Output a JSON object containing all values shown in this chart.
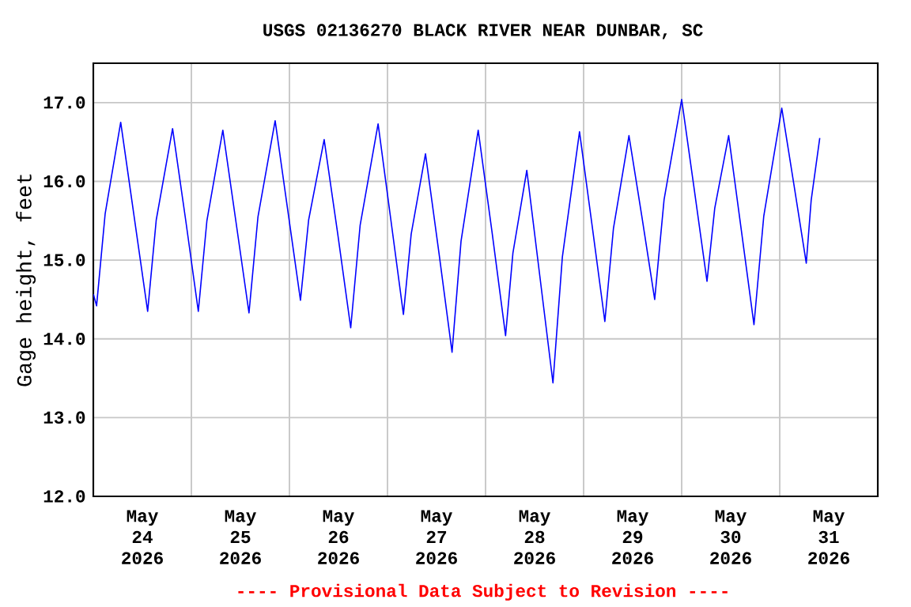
{
  "chart_data": {
    "type": "line",
    "title": "USGS 02136270 BLACK RIVER NEAR DUNBAR, SC",
    "ylabel": "Gage height, feet",
    "annotations": [
      "---- Provisional Data Subject to Revision ----"
    ],
    "xlim": [
      "2026-05-24T00:00",
      "2026-06-01T00:00"
    ],
    "xticks": [
      {
        "value": "2026-05-24T12:00",
        "label": "May 24 2026"
      },
      {
        "value": "2026-05-25T12:00",
        "label": "May 25 2026"
      },
      {
        "value": "2026-05-26T12:00",
        "label": "May 26 2026"
      },
      {
        "value": "2026-05-27T12:00",
        "label": "May 27 2026"
      },
      {
        "value": "2026-05-28T12:00",
        "label": "May 28 2026"
      },
      {
        "value": "2026-05-29T12:00",
        "label": "May 29 2026"
      },
      {
        "value": "2026-05-30T12:00",
        "label": "May 30 2026"
      },
      {
        "value": "2026-05-31T12:00",
        "label": "May 31 2026"
      },
      {
        "value": "2026-05-25T00:00",
        "label": null
      },
      {
        "value": "2026-05-26T00:00",
        "label": null
      },
      {
        "value": "2026-05-27T00:00",
        "label": null
      },
      {
        "value": "2026-05-28T00:00",
        "label": null
      },
      {
        "value": "2026-05-29T00:00",
        "label": null
      },
      {
        "value": "2026-05-30T00:00",
        "label": null
      },
      {
        "value": "2026-05-31T00:00",
        "label": null
      }
    ],
    "ylim": [
      12,
      17.5
    ],
    "yticks": [
      {
        "value": 12,
        "label": "12.0"
      },
      {
        "value": 13,
        "label": "13.0"
      },
      {
        "value": 14,
        "label": "14.0"
      },
      {
        "value": 15,
        "label": "15.0"
      },
      {
        "value": 16,
        "label": "16.0"
      },
      {
        "value": 17,
        "label": "17.0"
      }
    ],
    "grid": true,
    "marker": "none",
    "line_style": "solid",
    "x": [
      "2026-05-24T00:00",
      "2026-05-24T00:48",
      "2026-05-24T02:54",
      "2026-05-24T06:42",
      "2026-05-24T10:00",
      "2026-05-24T13:18",
      "2026-05-24T15:24",
      "2026-05-24T19:24",
      "2026-05-24T22:36",
      "2026-05-25T01:42",
      "2026-05-25T03:48",
      "2026-05-25T07:42",
      "2026-05-25T10:54",
      "2026-05-25T14:06",
      "2026-05-25T16:18",
      "2026-05-25T20:30",
      "2026-05-25T23:36",
      "2026-05-26T02:42",
      "2026-05-26T04:42",
      "2026-05-26T08:30",
      "2026-05-26T11:48",
      "2026-05-26T15:00",
      "2026-05-26T17:18",
      "2026-05-26T21:42",
      "2026-05-27T00:48",
      "2026-05-27T03:54",
      "2026-05-27T05:48",
      "2026-05-27T09:18",
      "2026-05-27T12:36",
      "2026-05-27T15:48",
      "2026-05-27T18:00",
      "2026-05-27T22:12",
      "2026-05-28T01:36",
      "2026-05-28T04:54",
      "2026-05-28T06:42",
      "2026-05-28T10:06",
      "2026-05-28T13:18",
      "2026-05-28T16:30",
      "2026-05-28T18:48",
      "2026-05-28T23:00",
      "2026-05-29T02:06",
      "2026-05-29T05:12",
      "2026-05-29T07:18",
      "2026-05-29T11:06",
      "2026-05-29T14:18",
      "2026-05-29T17:24",
      "2026-05-29T19:42",
      "2026-05-30T00:00",
      "2026-05-30T03:06",
      "2026-05-30T06:12",
      "2026-05-30T08:06",
      "2026-05-30T11:30",
      "2026-05-30T14:36",
      "2026-05-30T17:42",
      "2026-05-30T20:06",
      "2026-05-31T00:30",
      "2026-05-31T03:30",
      "2026-05-31T06:30",
      "2026-05-31T07:42",
      "2026-05-31T09:48"
    ],
    "series": [
      {
        "color": "#0000ff",
        "values": [
          14.57,
          14.42,
          15.59,
          16.75,
          15.55,
          14.35,
          15.51,
          16.67,
          15.51,
          14.35,
          15.5,
          16.65,
          15.49,
          14.33,
          15.55,
          16.77,
          15.63,
          14.49,
          15.51,
          16.53,
          15.34,
          14.14,
          15.44,
          16.73,
          15.52,
          14.31,
          15.33,
          16.35,
          15.09,
          13.83,
          15.24,
          16.65,
          15.35,
          14.04,
          15.09,
          16.14,
          14.79,
          13.44,
          15.04,
          16.63,
          15.43,
          14.22,
          15.4,
          16.58,
          15.54,
          14.5,
          15.77,
          17.04,
          15.89,
          14.73,
          15.66,
          16.58,
          15.38,
          14.18,
          15.56,
          16.93,
          15.95,
          14.96,
          15.76,
          16.55
        ]
      }
    ]
  }
}
